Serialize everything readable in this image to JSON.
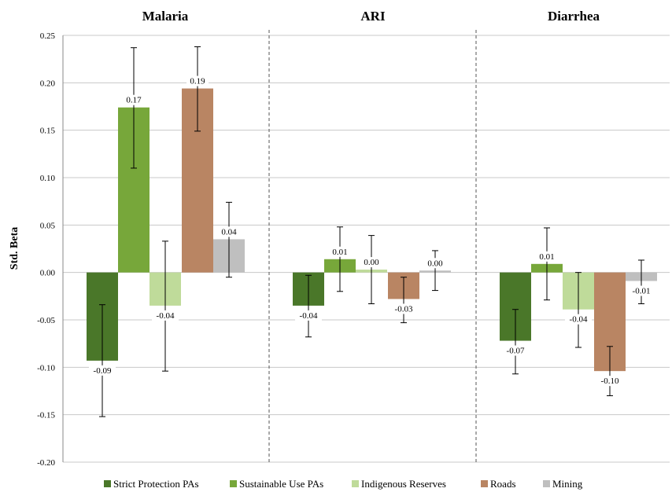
{
  "chart_data": {
    "type": "bar",
    "ylabel": "Std. Beta",
    "ylim": [
      -0.2,
      0.25
    ],
    "yticks": [
      "0.25",
      "0.20",
      "0.15",
      "0.10",
      "0.05",
      "0.00",
      "-0.05",
      "-0.10",
      "-0.15",
      "-0.20"
    ],
    "ytick_values": [
      0.25,
      0.2,
      0.15,
      0.1,
      0.05,
      0.0,
      -0.05,
      -0.1,
      -0.15,
      -0.2
    ],
    "grid": true,
    "legend_position": "bottom",
    "series": [
      {
        "name": "Strict Protection PAs",
        "color": "#4a7729"
      },
      {
        "name": "Sustainable Use PAs",
        "color": "#77a73a"
      },
      {
        "name": "Indigenous Reserves",
        "color": "#bfdb9a"
      },
      {
        "name": "Roads",
        "color": "#b98563"
      },
      {
        "name": "Mining",
        "color": "#bfbfbf"
      }
    ],
    "panels": [
      {
        "title": "Malaria",
        "values": [
          -0.093,
          0.174,
          -0.035,
          0.194,
          0.035
        ],
        "labels": [
          "-0.09",
          "0.17",
          "-0.04",
          "0.19",
          "0.04"
        ],
        "err_low": [
          -0.152,
          0.11,
          -0.104,
          0.149,
          -0.005
        ],
        "err_high": [
          -0.034,
          0.237,
          0.033,
          0.238,
          0.074
        ]
      },
      {
        "title": "ARI",
        "values": [
          -0.035,
          0.014,
          0.003,
          -0.028,
          0.002
        ],
        "labels": [
          "-0.04",
          "0.01",
          "0.00",
          "-0.03",
          "0.00"
        ],
        "err_low": [
          -0.068,
          -0.02,
          -0.033,
          -0.053,
          -0.019
        ],
        "err_high": [
          -0.003,
          0.048,
          0.039,
          -0.005,
          0.023
        ]
      },
      {
        "title": "Diarrhea",
        "values": [
          -0.072,
          0.009,
          -0.039,
          -0.104,
          -0.009
        ],
        "labels": [
          "-0.07",
          "0.01",
          "-0.04",
          "-0.10",
          "-0.01"
        ],
        "err_low": [
          -0.107,
          -0.029,
          -0.079,
          -0.13,
          -0.033
        ],
        "err_high": [
          -0.039,
          0.047,
          0.0,
          -0.078,
          0.013
        ]
      }
    ]
  }
}
